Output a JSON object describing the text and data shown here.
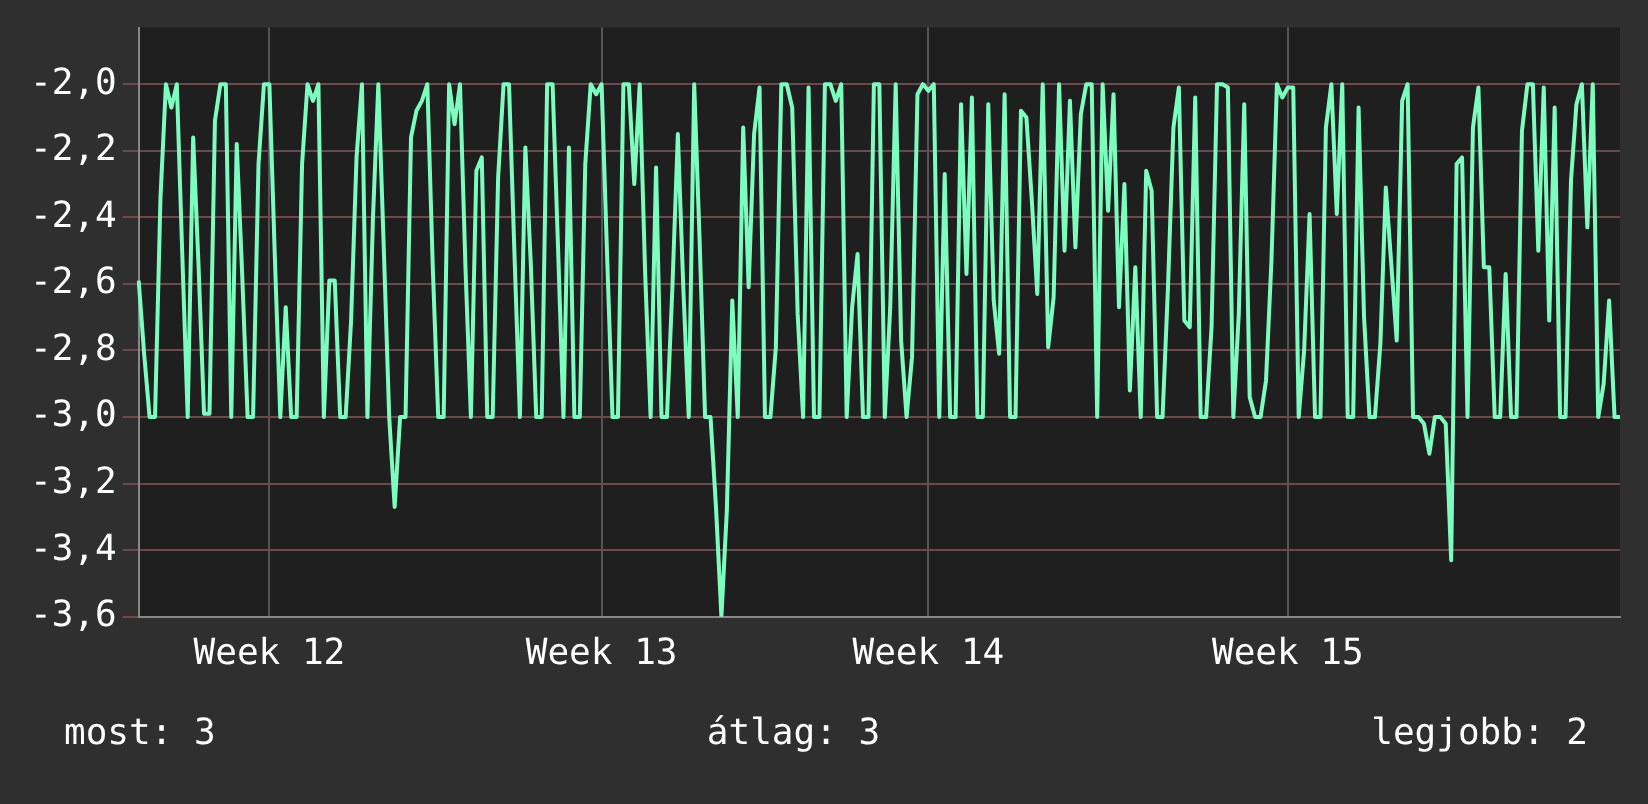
{
  "chart_data": {
    "type": "line",
    "ylim": [
      -3.6,
      -1.83
    ],
    "yticks": [
      {
        "value": -3.6,
        "label": "-3,6"
      },
      {
        "value": -3.4,
        "label": "-3,4"
      },
      {
        "value": -3.2,
        "label": "-3,2"
      },
      {
        "value": -3.0,
        "label": "-3,0"
      },
      {
        "value": -2.8,
        "label": "-2,8"
      },
      {
        "value": -2.6,
        "label": "-2,6"
      },
      {
        "value": -2.4,
        "label": "-2,4"
      },
      {
        "value": -2.2,
        "label": "-2,2"
      },
      {
        "value": -2.0,
        "label": "-2,0"
      }
    ],
    "grid": true,
    "legend": false,
    "marker": "none",
    "line_style": "solid",
    "annotations": [
      "most: 3",
      "átlag: 3",
      "legjobb: 2"
    ],
    "categories": [
      null,
      null,
      null,
      null,
      null,
      null,
      null,
      null,
      null,
      null,
      null,
      null,
      null,
      null,
      null,
      null,
      null,
      null,
      null,
      null,
      null,
      null,
      null,
      null,
      "Week 12",
      null,
      null,
      null,
      null,
      null,
      null,
      null,
      null,
      null,
      null,
      null,
      null,
      null,
      null,
      null,
      null,
      null,
      null,
      null,
      null,
      null,
      null,
      null,
      null,
      null,
      null,
      null,
      null,
      null,
      null,
      null,
      null,
      null,
      null,
      null,
      null,
      null,
      null,
      null,
      null,
      null,
      null,
      null,
      null,
      null,
      null,
      null,
      null,
      null,
      null,
      null,
      null,
      null,
      null,
      null,
      null,
      null,
      null,
      null,
      null,
      "Week 13",
      null,
      null,
      null,
      null,
      null,
      null,
      null,
      null,
      null,
      null,
      null,
      null,
      null,
      null,
      null,
      null,
      null,
      null,
      null,
      null,
      null,
      null,
      null,
      null,
      null,
      null,
      null,
      null,
      null,
      null,
      null,
      null,
      null,
      null,
      null,
      null,
      null,
      null,
      null,
      null,
      null,
      null,
      null,
      null,
      null,
      null,
      null,
      null,
      null,
      null,
      null,
      null,
      null,
      null,
      null,
      null,
      null,
      null,
      null,
      "Week 14",
      null,
      null,
      null,
      null,
      null,
      null,
      null,
      null,
      null,
      null,
      null,
      null,
      null,
      null,
      null,
      null,
      null,
      null,
      null,
      null,
      null,
      null,
      null,
      null,
      null,
      null,
      null,
      null,
      null,
      null,
      null,
      null,
      null,
      null,
      null,
      null,
      null,
      null,
      null,
      null,
      null,
      null,
      null,
      null,
      null,
      null,
      null,
      null,
      null,
      null,
      null,
      null,
      null,
      null,
      null,
      null,
      null,
      null,
      null,
      null,
      null,
      null,
      null,
      null,
      null,
      "Week 15",
      null,
      null,
      null,
      null,
      null,
      null,
      null,
      null,
      null,
      null,
      null,
      null,
      null,
      null,
      null,
      null,
      null,
      null,
      null,
      null,
      null,
      null,
      null,
      null,
      null,
      null,
      null,
      null,
      null,
      null,
      null,
      null,
      null,
      null,
      null,
      null,
      null,
      null,
      null,
      null,
      null,
      null,
      null,
      null,
      null,
      null,
      null,
      null,
      null,
      null,
      null,
      null,
      null,
      null,
      null,
      null,
      null,
      null,
      null,
      null,
      null
    ],
    "series": [
      {
        "color": "#7dfcc0",
        "values": [
          -2.59,
          -2.81,
          -3.0,
          -3.0,
          -2.34,
          -2.0,
          -2.07,
          -2.0,
          -2.51,
          -3.0,
          -2.16,
          -2.55,
          -2.99,
          -2.99,
          -2.11,
          -2.0,
          -2.0,
          -3.0,
          -2.18,
          -2.57,
          -3.0,
          -3.0,
          -2.24,
          -2.0,
          -2.0,
          -2.52,
          -3.0,
          -2.67,
          -3.0,
          -3.0,
          -2.24,
          -2.0,
          -2.05,
          -2.0,
          -3.0,
          -2.59,
          -2.59,
          -3.0,
          -3.0,
          -2.71,
          -2.22,
          -2.0,
          -3.0,
          -2.41,
          -2.0,
          -2.49,
          -3.0,
          -3.27,
          -3.0,
          -3.0,
          -2.16,
          -2.08,
          -2.05,
          -2.0,
          -2.55,
          -3.0,
          -3.0,
          -2.0,
          -2.12,
          -2.0,
          -2.55,
          -3.0,
          -2.26,
          -2.22,
          -3.0,
          -3.0,
          -2.28,
          -2.0,
          -2.0,
          -2.51,
          -3.0,
          -2.19,
          -2.54,
          -3.0,
          -3.0,
          -2.0,
          -2.0,
          -2.49,
          -3.0,
          -2.19,
          -3.0,
          -3.0,
          -2.24,
          -2.0,
          -2.03,
          -2.0,
          -2.51,
          -3.0,
          -3.0,
          -2.0,
          -2.0,
          -2.3,
          -2.0,
          -2.57,
          -3.0,
          -2.25,
          -3.0,
          -3.0,
          -2.61,
          -2.15,
          -2.61,
          -3.0,
          -2.0,
          -2.47,
          -3.0,
          -3.0,
          -3.27,
          -3.6,
          -3.28,
          -2.65,
          -3.0,
          -2.13,
          -2.61,
          -2.15,
          -2.01,
          -3.0,
          -3.0,
          -2.79,
          -2.0,
          -2.0,
          -2.07,
          -2.69,
          -3.0,
          -2.01,
          -3.0,
          -3.0,
          -2.0,
          -2.0,
          -2.05,
          -2.0,
          -3.0,
          -2.67,
          -2.51,
          -3.0,
          -3.0,
          -2.0,
          -2.0,
          -3.0,
          -2.67,
          -2.0,
          -2.77,
          -3.0,
          -2.82,
          -2.03,
          -2.0,
          -2.02,
          -2.0,
          -3.0,
          -2.27,
          -3.0,
          -3.0,
          -2.06,
          -2.57,
          -2.04,
          -3.0,
          -3.0,
          -2.06,
          -2.65,
          -2.81,
          -2.03,
          -3.0,
          -3.0,
          -2.08,
          -2.1,
          -2.35,
          -2.63,
          -2.0,
          -2.79,
          -2.64,
          -2.0,
          -2.5,
          -2.05,
          -2.49,
          -2.09,
          -2.0,
          -2.0,
          -3.0,
          -2.0,
          -2.38,
          -2.03,
          -2.67,
          -2.3,
          -2.92,
          -2.55,
          -3.0,
          -2.26,
          -2.32,
          -3.0,
          -3.0,
          -2.61,
          -2.13,
          -2.01,
          -2.71,
          -2.73,
          -2.04,
          -3.0,
          -3.0,
          -2.73,
          -2.0,
          -2.0,
          -2.01,
          -3.0,
          -2.69,
          -2.06,
          -2.94,
          -3.0,
          -3.0,
          -2.89,
          -2.53,
          -2.0,
          -2.04,
          -2.01,
          -2.01,
          -3.0,
          -2.8,
          -2.39,
          -3.0,
          -3.0,
          -2.13,
          -2.0,
          -2.39,
          -2.0,
          -3.0,
          -3.0,
          -2.07,
          -2.7,
          -3.0,
          -3.0,
          -2.78,
          -2.31,
          -2.54,
          -2.77,
          -2.05,
          -2.0,
          -3.0,
          -3.0,
          -3.02,
          -3.11,
          -3.0,
          -3.0,
          -3.02,
          -3.43,
          -2.24,
          -2.22,
          -3.0,
          -2.13,
          -2.01,
          -2.55,
          -2.55,
          -3.0,
          -3.0,
          -2.57,
          -3.0,
          -3.0,
          -2.14,
          -2.0,
          -2.0,
          -2.5,
          -2.01,
          -2.71,
          -2.07,
          -3.0,
          -3.0,
          -2.29,
          -2.06,
          -2.0,
          -2.43,
          -2.0,
          -3.0,
          -2.9,
          -2.65,
          -3.0,
          -3.0
        ]
      }
    ]
  }
}
